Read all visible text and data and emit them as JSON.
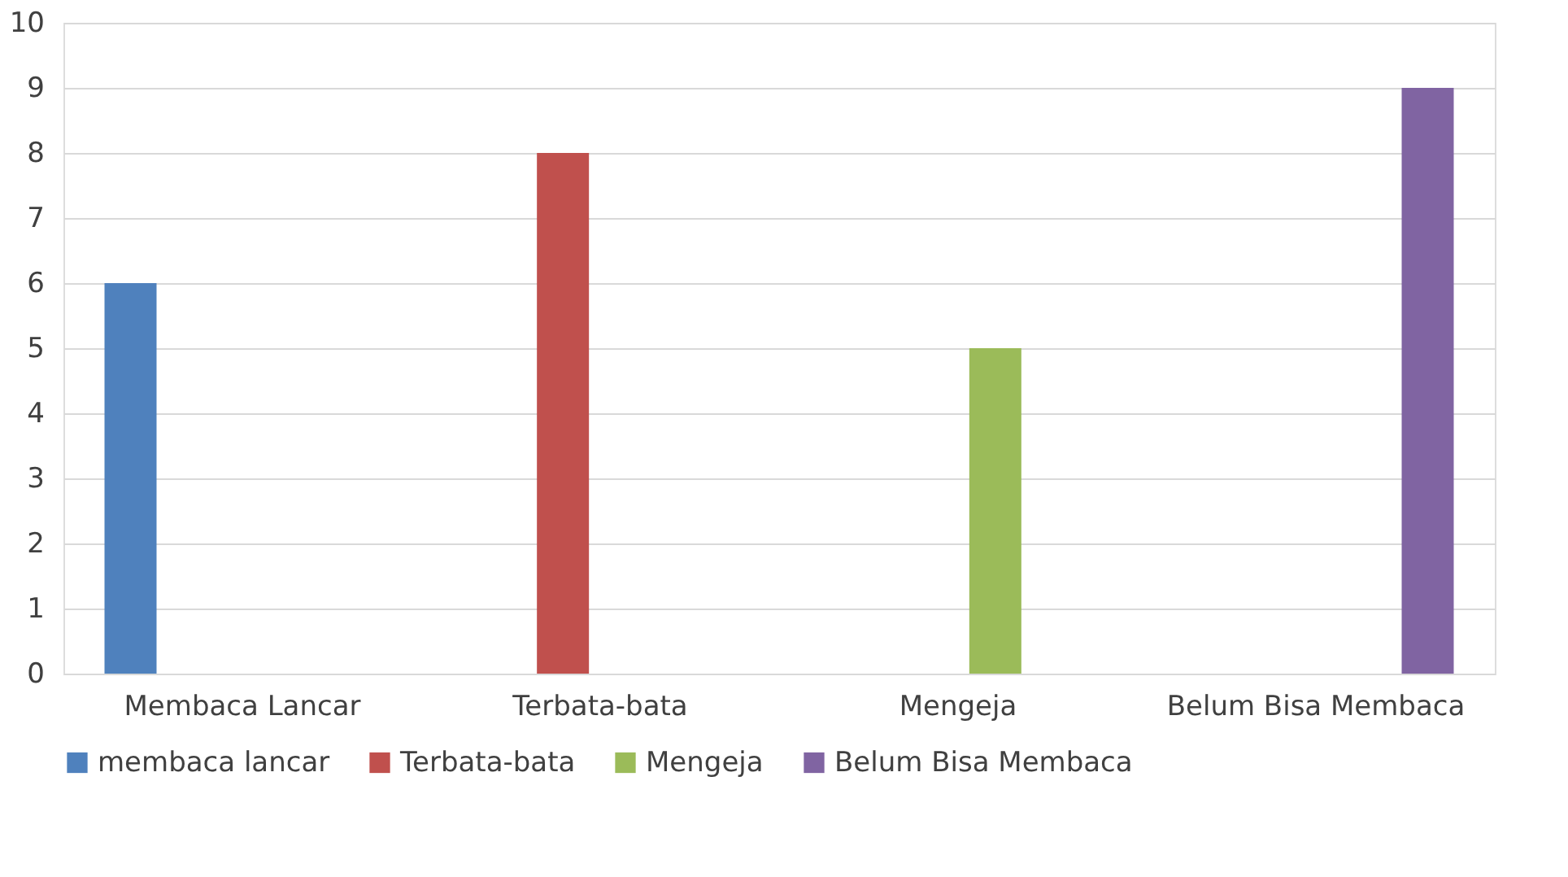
{
  "chart_data": {
    "type": "bar",
    "categories": [
      "Membaca Lancar",
      "Terbata-bata",
      "Mengeja",
      "Belum Bisa Membaca"
    ],
    "series": [
      {
        "name": "membaca lancar",
        "color": "#4f81bd",
        "values": [
          6,
          null,
          null,
          null
        ]
      },
      {
        "name": "Terbata-bata",
        "color": "#c0504d",
        "values": [
          null,
          8,
          null,
          null
        ]
      },
      {
        "name": "Mengeja",
        "color": "#9bbb59",
        "values": [
          null,
          null,
          5,
          null
        ]
      },
      {
        "name": "Belum Bisa Membaca",
        "color": "#8064a2",
        "values": [
          null,
          null,
          null,
          9
        ]
      }
    ],
    "ylim": [
      0,
      10
    ],
    "yticks": [
      0,
      1,
      2,
      3,
      4,
      5,
      6,
      7,
      8,
      9,
      10
    ],
    "grid": "y",
    "legend": "bottom"
  }
}
